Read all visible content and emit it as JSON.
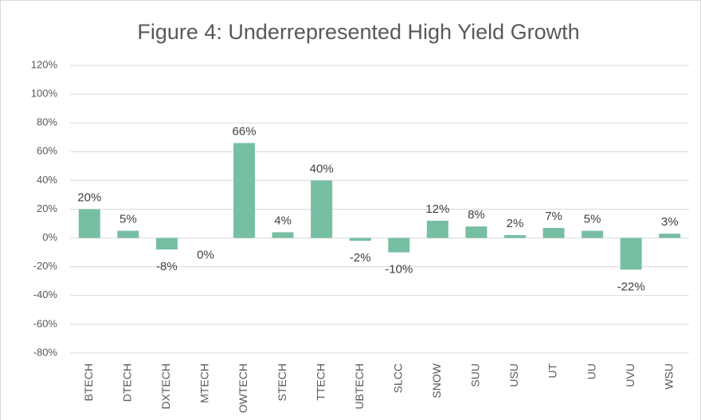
{
  "chart_data": {
    "type": "bar",
    "title": "Figure 4: Underrepresented High Yield Growth",
    "categories": [
      "BTECH",
      "DTECH",
      "DXTECH",
      "MTECH",
      "OWTECH",
      "STECH",
      "TTECH",
      "UBTECH",
      "SLCC",
      "SNOW",
      "SUU",
      "USU",
      "UT",
      "UU",
      "UVU",
      "WSU"
    ],
    "values": [
      20,
      5,
      -8,
      0,
      66,
      4,
      40,
      -2,
      -10,
      12,
      8,
      2,
      7,
      5,
      -22,
      3
    ],
    "value_labels": [
      "20%",
      "5%",
      "-8%",
      "0%",
      "66%",
      "4%",
      "40%",
      "-2%",
      "-10%",
      "12%",
      "8%",
      "2%",
      "7%",
      "5%",
      "-22%",
      "3%"
    ],
    "color": "#77bfa3",
    "ylim": [
      -80,
      120
    ],
    "yticks": [
      {
        "value": -80,
        "label": "-80%"
      },
      {
        "value": -60,
        "label": "-60%"
      },
      {
        "value": -40,
        "label": "-40%"
      },
      {
        "value": -20,
        "label": "-20%"
      },
      {
        "value": 0,
        "label": "0%"
      },
      {
        "value": 20,
        "label": "20%"
      },
      {
        "value": 40,
        "label": "40%"
      },
      {
        "value": 60,
        "label": "60%"
      },
      {
        "value": 80,
        "label": "80%"
      },
      {
        "value": 100,
        "label": "100%"
      },
      {
        "value": 120,
        "label": "120%"
      }
    ],
    "grid": true
  }
}
